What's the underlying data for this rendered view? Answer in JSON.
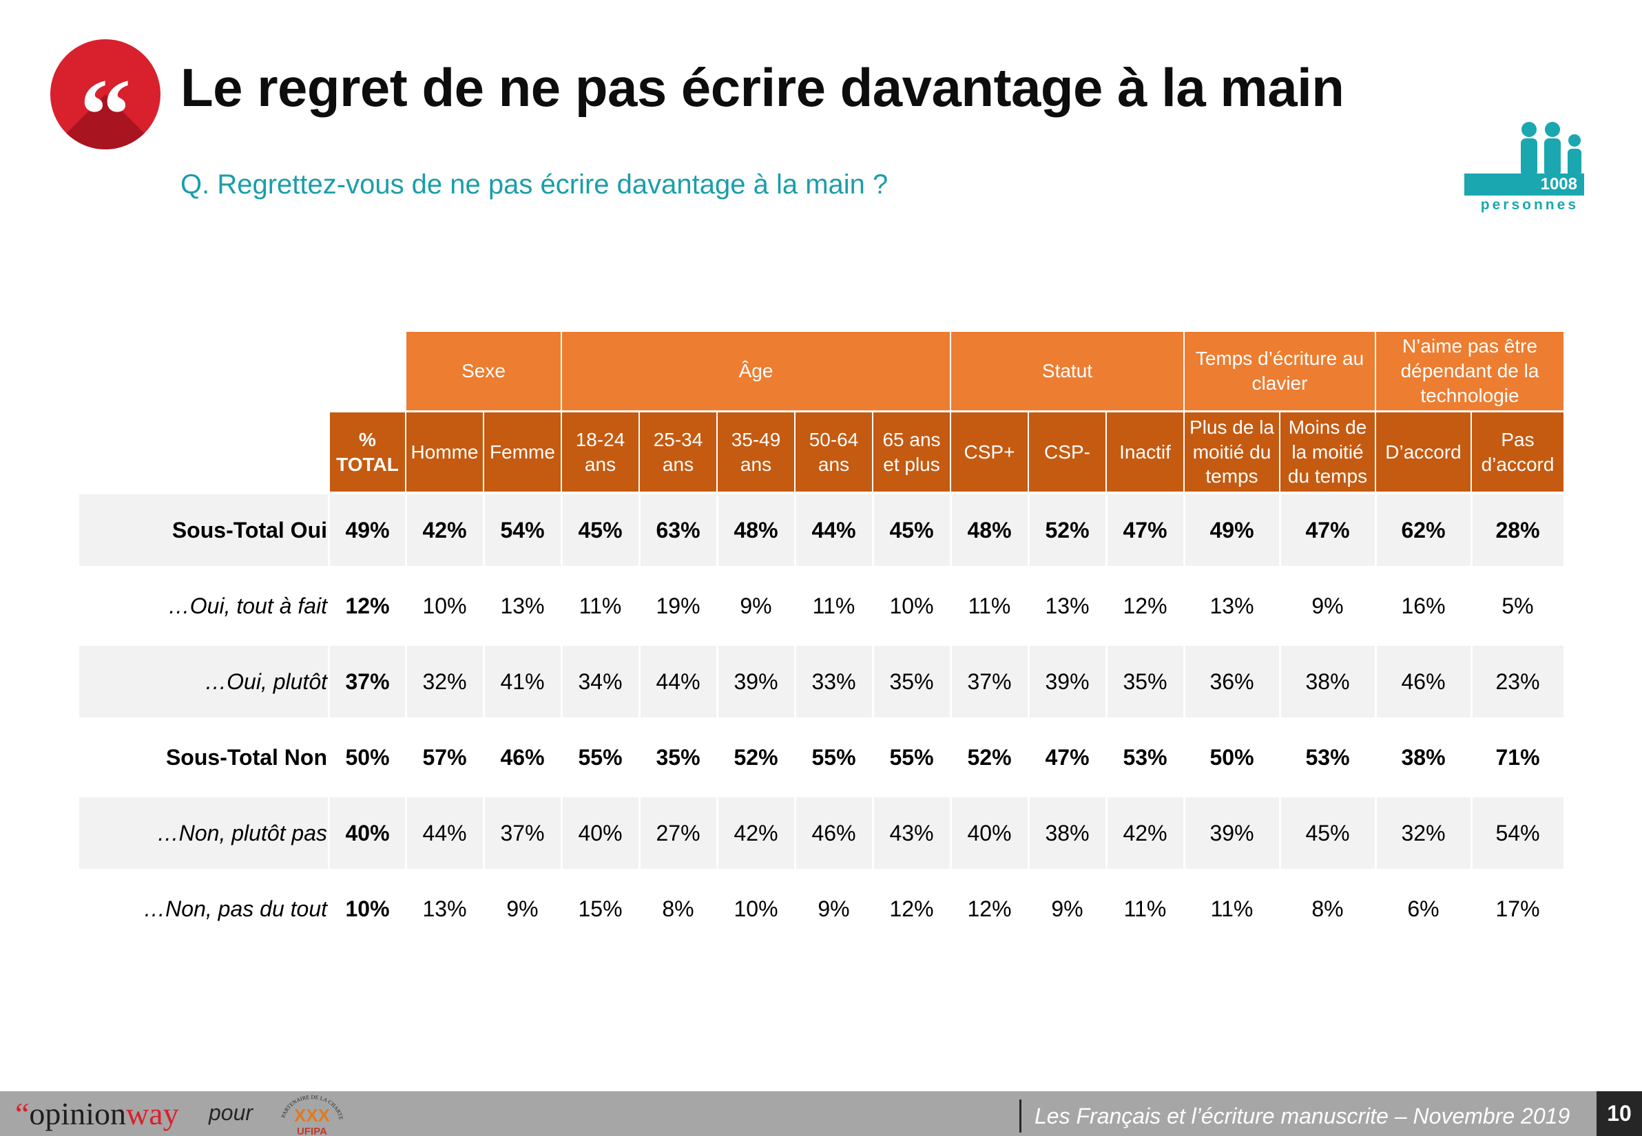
{
  "header": {
    "quote_glyph": "“",
    "title": "Le regret de ne pas écrire davantage à la main",
    "question": "Q. Regrettez-vous de ne pas écrire davantage à la main ?",
    "sample_count": "1008",
    "sample_label": "personnes"
  },
  "table": {
    "groups": [
      "Sexe",
      "Âge",
      "Statut",
      "Temps d’écriture au clavier",
      "N’aime pas être dépendant de la technologie"
    ],
    "total_label": "% TOTAL",
    "columns": [
      "Homme",
      "Femme",
      "18-24 ans",
      "25-34 ans",
      "35-49 ans",
      "50-64 ans",
      "65 ans et plus",
      "CSP+",
      "CSP-",
      "Inactif",
      "Plus de la moitié du temps",
      "Moins de la moitié du temps",
      "D’accord",
      "Pas d’accord"
    ],
    "rows": [
      {
        "label": "Sous-Total Oui",
        "total": "49%",
        "values": [
          "42%",
          "54%",
          "45%",
          "63%",
          "48%",
          "44%",
          "45%",
          "48%",
          "52%",
          "47%",
          "49%",
          "47%",
          "62%",
          "28%"
        ]
      },
      {
        "label": "…Oui, tout à fait",
        "total": "12%",
        "values": [
          "10%",
          "13%",
          "11%",
          "19%",
          "9%",
          "11%",
          "10%",
          "11%",
          "13%",
          "12%",
          "13%",
          "9%",
          "16%",
          "5%"
        ]
      },
      {
        "label": "…Oui, plutôt",
        "total": "37%",
        "values": [
          "32%",
          "41%",
          "34%",
          "44%",
          "39%",
          "33%",
          "35%",
          "37%",
          "39%",
          "35%",
          "36%",
          "38%",
          "46%",
          "23%"
        ]
      },
      {
        "label": "Sous-Total Non",
        "total": "50%",
        "values": [
          "57%",
          "46%",
          "55%",
          "35%",
          "52%",
          "55%",
          "55%",
          "52%",
          "47%",
          "53%",
          "50%",
          "53%",
          "38%",
          "71%"
        ]
      },
      {
        "label": "…Non, plutôt pas",
        "total": "40%",
        "values": [
          "44%",
          "37%",
          "40%",
          "27%",
          "42%",
          "46%",
          "43%",
          "40%",
          "38%",
          "42%",
          "39%",
          "45%",
          "32%",
          "54%"
        ]
      },
      {
        "label": "…Non, pas du tout",
        "total": "10%",
        "values": [
          "13%",
          "9%",
          "15%",
          "8%",
          "10%",
          "9%",
          "12%",
          "12%",
          "9%",
          "11%",
          "11%",
          "8%",
          "6%",
          "17%"
        ]
      }
    ]
  },
  "footer": {
    "brand_quote": "“",
    "brand_name_a": "opinion",
    "brand_name_b": "way",
    "pour": "pour",
    "partner_text_top": "PARTENAIRE DE LA CHARTE",
    "partner_text_bottom": "UFIPA",
    "caption": "Les Français et l’écriture manuscrite – Novembre 2019",
    "page_number": "10"
  },
  "colors": {
    "accent_red": "#d9202d",
    "teal": "#1a9ea9",
    "header_orange": "#ed7d31",
    "subheader_orange": "#c55a11",
    "row_shade": "#f2f2f2"
  }
}
